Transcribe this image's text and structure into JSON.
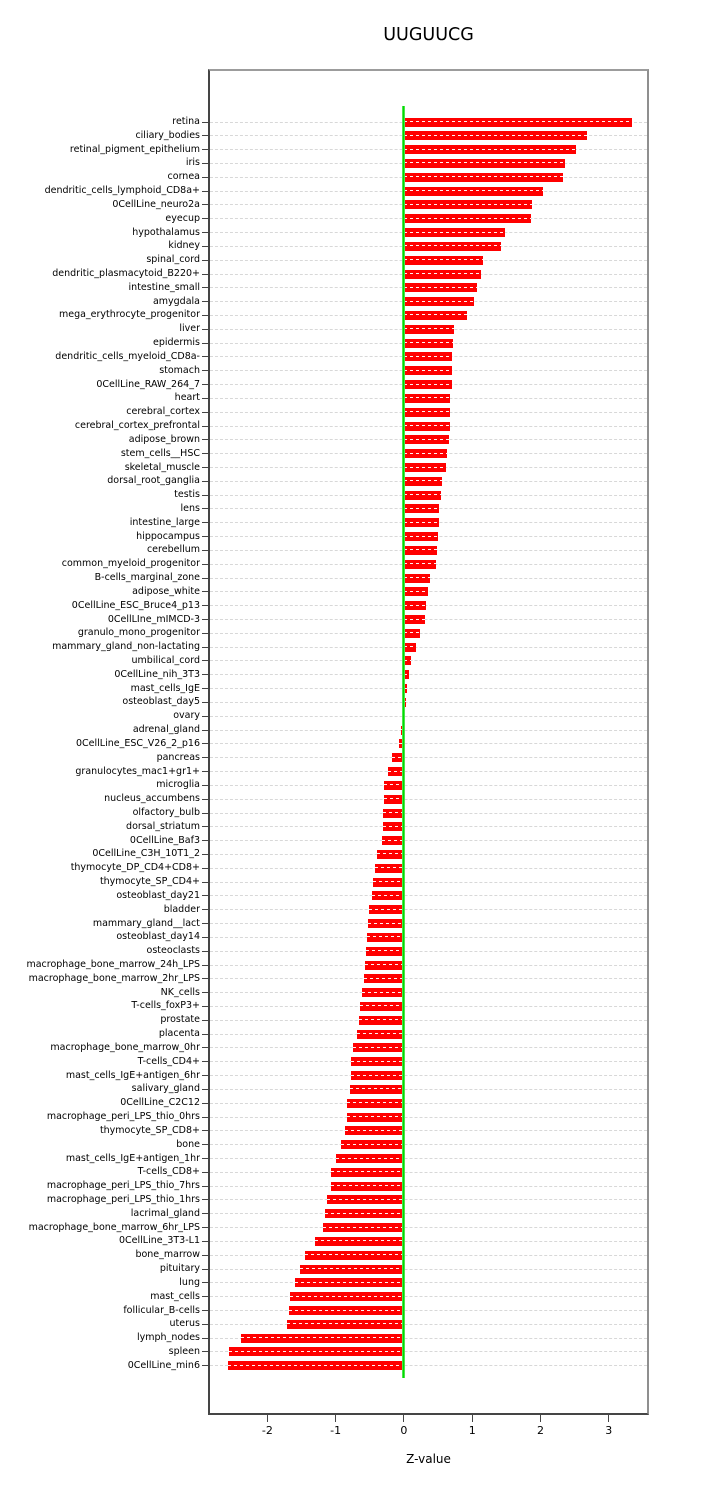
{
  "chart_data": {
    "type": "bar",
    "orientation": "horizontal",
    "title": "UUGUUCG",
    "xlabel": "Z-value",
    "ylabel": "",
    "xlim": [
      -2.84,
      3.56
    ],
    "xticks": [
      -2,
      -1,
      0,
      1,
      2,
      3
    ],
    "grid": "horizontal-dashed",
    "zero_line": true,
    "legend": "none",
    "colors": {
      "bar": "#ff0000",
      "zero_line": "#00dc00",
      "grid": "#d8d8d8",
      "axis_dark": "#454545",
      "border_light": "#9c9c9c",
      "text": "#000000"
    },
    "categories": [
      "retina",
      "ciliary_bodies",
      "retinal_pigment_epithelium",
      "iris",
      "cornea",
      "dendritic_cells_lymphoid_CD8a+",
      "0CellLine_neuro2a",
      "eyecup",
      "hypothalamus",
      "kidney",
      "spinal_cord",
      "dendritic_plasmacytoid_B220+",
      "intestine_small",
      "amygdala",
      "mega_erythrocyte_progenitor",
      "liver",
      "epidermis",
      "dendritic_cells_myeloid_CD8a-",
      "stomach",
      "0CellLine_RAW_264_7",
      "heart",
      "cerebral_cortex",
      "cerebral_cortex_prefrontal",
      "adipose_brown",
      "stem_cells__HSC",
      "skeletal_muscle",
      "dorsal_root_ganglia",
      "testis",
      "lens",
      "intestine_large",
      "hippocampus",
      "cerebellum",
      "common_myeloid_progenitor",
      "B-cells_marginal_zone",
      "adipose_white",
      "0CellLine_ESC_Bruce4_p13",
      "0CellLIne_mIMCD-3",
      "granulo_mono_progenitor",
      "mammary_gland_non-lactating",
      "umbilical_cord",
      "0CellLine_nih_3T3",
      "mast_cells_IgE",
      "osteoblast_day5",
      "ovary",
      "adrenal_gland",
      "0CellLine_ESC_V26_2_p16",
      "pancreas",
      "granulocytes_mac1+gr1+",
      "microglia",
      "nucleus_accumbens",
      "olfactory_bulb",
      "dorsal_striatum",
      "0CellLine_Baf3",
      "0CellLine_C3H_10T1_2",
      "thymocyte_DP_CD4+CD8+",
      "thymocyte_SP_CD4+",
      "osteoblast_day21",
      "bladder",
      "mammary_gland__lact",
      "osteoblast_day14",
      "osteoclasts",
      "macrophage_bone_marrow_24h_LPS",
      "macrophage_bone_marrow_2hr_LPS",
      "NK_cells",
      "T-cells_foxP3+",
      "prostate",
      "placenta",
      "macrophage_bone_marrow_0hr",
      "T-cells_CD4+",
      "mast_cells_IgE+antigen_6hr",
      "salivary_gland",
      "0CellLine_C2C12",
      "macrophage_peri_LPS_thio_0hrs",
      "thymocyte_SP_CD8+",
      "bone",
      "mast_cells_IgE+antigen_1hr",
      "T-cells_CD8+",
      "macrophage_peri_LPS_thio_7hrs",
      "macrophage_peri_LPS_thio_1hrs",
      "lacrimal_gland",
      "macrophage_bone_marrow_6hr_LPS",
      "0CellLine_3T3-L1",
      "bone_marrow",
      "pituitary",
      "lung",
      "mast_cells",
      "follicular_B-cells",
      "uterus",
      "lymph_nodes",
      "spleen",
      "0CellLine_min6"
    ],
    "values": [
      3.34,
      2.68,
      2.52,
      2.36,
      2.33,
      2.03,
      1.87,
      1.86,
      1.48,
      1.42,
      1.16,
      1.13,
      1.07,
      1.03,
      0.92,
      0.74,
      0.72,
      0.71,
      0.71,
      0.7,
      0.68,
      0.67,
      0.67,
      0.66,
      0.63,
      0.62,
      0.56,
      0.54,
      0.52,
      0.51,
      0.5,
      0.48,
      0.47,
      0.38,
      0.35,
      0.32,
      0.31,
      0.23,
      0.18,
      0.11,
      0.08,
      0.04,
      0.03,
      -0.01,
      -0.05,
      -0.07,
      -0.18,
      -0.24,
      -0.29,
      -0.29,
      -0.3,
      -0.31,
      -0.32,
      -0.4,
      -0.43,
      -0.45,
      -0.47,
      -0.51,
      -0.53,
      -0.54,
      -0.55,
      -0.57,
      -0.59,
      -0.62,
      -0.65,
      -0.66,
      -0.68,
      -0.75,
      -0.78,
      -0.78,
      -0.79,
      -0.83,
      -0.84,
      -0.86,
      -0.92,
      -1.0,
      -1.07,
      -1.07,
      -1.13,
      -1.16,
      -1.19,
      -1.3,
      -1.45,
      -1.52,
      -1.59,
      -1.67,
      -1.69,
      -1.71,
      -2.39,
      -2.56,
      -2.58
    ]
  }
}
